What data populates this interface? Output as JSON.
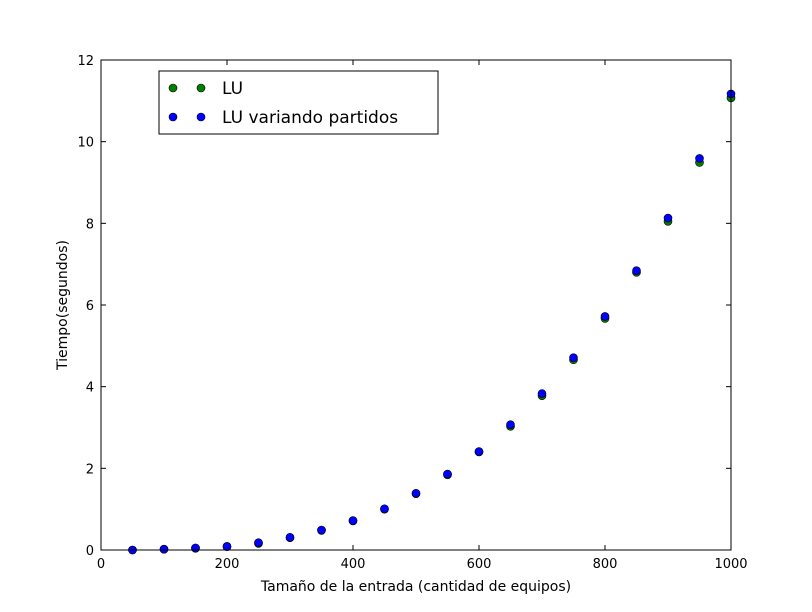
{
  "chart_data": {
    "type": "scatter",
    "xlabel": "Tamaño de la entrada (cantidad de equipos)",
    "ylabel": "Tiempo(segundos)",
    "xlim": [
      0,
      1000
    ],
    "ylim": [
      0,
      12
    ],
    "xticks": [
      "0",
      "200",
      "400",
      "600",
      "800",
      "1000"
    ],
    "yticks": [
      "0",
      "2",
      "4",
      "6",
      "8",
      "10",
      "12"
    ],
    "grid": false,
    "legend_position": "top-left",
    "x": [
      50,
      100,
      150,
      200,
      250,
      300,
      350,
      400,
      450,
      500,
      550,
      600,
      650,
      700,
      750,
      800,
      850,
      900,
      950,
      1000
    ],
    "series": [
      {
        "name": "LU",
        "color": "#007f00",
        "values": [
          0.0,
          0.02,
          0.04,
          0.08,
          0.16,
          0.3,
          0.48,
          0.71,
          1.0,
          1.38,
          1.84,
          2.4,
          3.03,
          3.78,
          4.66,
          5.67,
          6.8,
          8.05,
          9.49,
          11.07
        ]
      },
      {
        "name": "LU variando partidos",
        "color": "#0000ff",
        "values": [
          0.0,
          0.02,
          0.05,
          0.09,
          0.18,
          0.31,
          0.49,
          0.72,
          1.01,
          1.39,
          1.86,
          2.41,
          3.07,
          3.83,
          4.71,
          5.72,
          6.84,
          8.13,
          9.59,
          11.17
        ]
      }
    ]
  }
}
